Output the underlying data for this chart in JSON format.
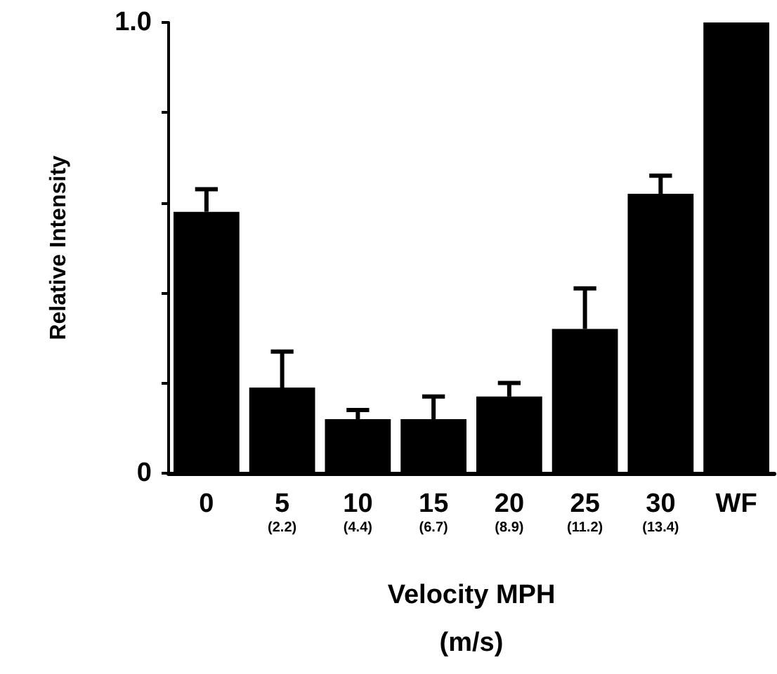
{
  "chart_data": {
    "type": "bar",
    "xlabel": "Velocity MPH\n(m/s)",
    "ylabel": "Relative Intensity",
    "categories": [
      "0",
      "5\n(2.2)",
      "10\n(4.4)",
      "15\n(6.7)",
      "20\n(8.9)",
      "25\n(11.2)",
      "30\n(13.4)",
      "WF"
    ],
    "values": [
      0.58,
      0.19,
      0.12,
      0.12,
      0.17,
      0.32,
      0.62,
      1.0
    ],
    "errors": [
      [
        0.58,
        0.63
      ],
      [
        0.19,
        0.27
      ],
      [
        0.12,
        0.14
      ],
      [
        0.12,
        0.17
      ],
      [
        0.17,
        0.2
      ],
      [
        0.32,
        0.41
      ],
      [
        0.62,
        0.66
      ],
      null
    ],
    "color": "#000000",
    "ylim": [
      0,
      1.0
    ],
    "yticks": [
      0,
      {
        "value": 0.2,
        "label": null
      },
      {
        "value": 0.4,
        "label": null
      },
      {
        "value": 0.6,
        "label": null
      },
      {
        "value": 0.8,
        "label": null
      },
      {
        "value": 1.0,
        "label": "1.0"
      }
    ],
    "grid": false
  }
}
